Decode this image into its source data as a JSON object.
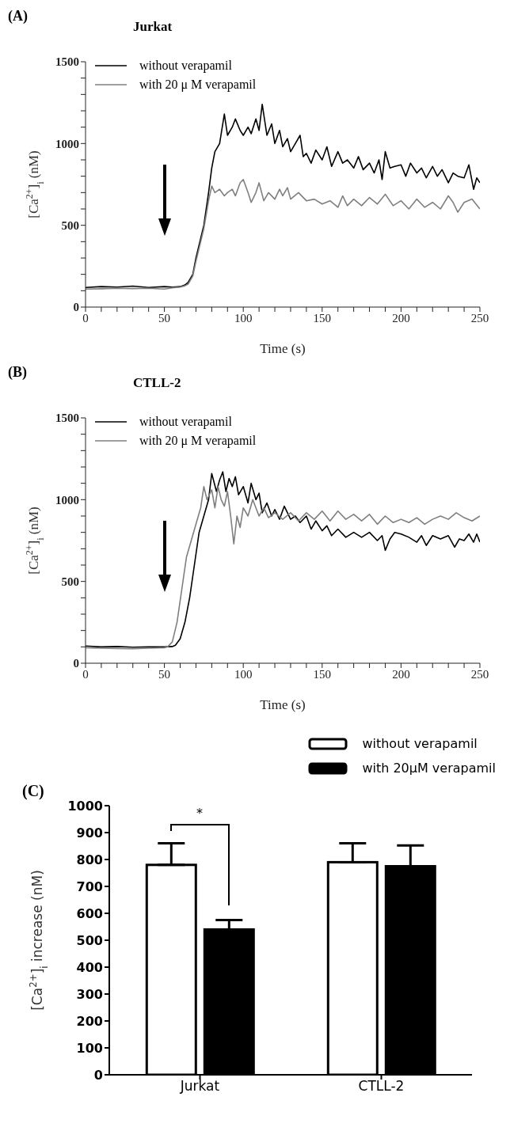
{
  "chart_data": [
    {
      "type": "line",
      "annotations": [
        "(A)"
      ],
      "title": "Jurkat",
      "xlabel": "Time (s)",
      "ylabel": "[Ca$^{2+}$]$_{i}$ (nM)",
      "legend": "top left",
      "grid": false,
      "marker": "none",
      "line_style": "solid",
      "xlim": [
        0,
        250
      ],
      "ylim": [
        0,
        1500
      ],
      "xticks": [
        0,
        {
          "value": 10,
          "label": null
        },
        {
          "value": 20,
          "label": null
        },
        {
          "value": 30,
          "label": null
        },
        {
          "value": 40,
          "label": null
        },
        50,
        {
          "value": 60,
          "label": null
        },
        {
          "value": 70,
          "label": null
        },
        {
          "value": 80,
          "label": null
        },
        {
          "value": 90,
          "label": null
        },
        100,
        {
          "value": 110,
          "label": null
        },
        {
          "value": 120,
          "label": null
        },
        {
          "value": 130,
          "label": null
        },
        {
          "value": 140,
          "label": null
        },
        150,
        {
          "value": 160,
          "label": null
        },
        {
          "value": 170,
          "label": null
        },
        {
          "value": 180,
          "label": null
        },
        {
          "value": 190,
          "label": null
        },
        200,
        {
          "value": 210,
          "label": null
        },
        {
          "value": 220,
          "label": null
        },
        {
          "value": 230,
          "label": null
        },
        {
          "value": 240,
          "label": null
        },
        250
      ],
      "yticks": [
        0,
        {
          "value": 100,
          "label": null
        },
        {
          "value": 200,
          "label": null
        },
        {
          "value": 300,
          "label": null
        },
        {
          "value": 400,
          "label": null
        },
        500,
        {
          "value": 600,
          "label": null
        },
        {
          "value": 700,
          "label": null
        },
        {
          "value": 800,
          "label": null
        },
        {
          "value": 900,
          "label": null
        },
        1000,
        {
          "value": 1100,
          "label": null
        },
        {
          "value": 1200,
          "label": null
        },
        {
          "value": 1300,
          "label": null
        },
        {
          "value": 1400,
          "label": null
        },
        1500
      ],
      "series": [
        {
          "name": "without verapamil",
          "color": "#000000",
          "x": [
            0,
            10,
            20,
            30,
            40,
            50,
            55,
            60,
            63,
            65,
            68,
            70,
            73,
            75,
            78,
            80,
            82,
            85,
            88,
            90,
            93,
            95,
            98,
            100,
            103,
            105,
            108,
            110,
            112,
            115,
            118,
            120,
            123,
            125,
            128,
            130,
            133,
            136,
            138,
            140,
            143,
            146,
            150,
            153,
            156,
            160,
            163,
            166,
            170,
            173,
            176,
            180,
            183,
            186,
            188,
            190,
            193,
            196,
            200,
            203,
            206,
            210,
            213,
            216,
            220,
            223,
            226,
            230,
            233,
            236,
            240,
            243,
            246,
            248,
            250
          ],
          "values": [
            120,
            125,
            122,
            128,
            120,
            125,
            122,
            125,
            135,
            150,
            200,
            300,
            420,
            500,
            700,
            850,
            950,
            1000,
            1180,
            1050,
            1100,
            1150,
            1080,
            1050,
            1100,
            1060,
            1150,
            1080,
            1240,
            1050,
            1120,
            1000,
            1080,
            980,
            1030,
            950,
            1000,
            1050,
            920,
            940,
            880,
            960,
            900,
            980,
            860,
            950,
            880,
            900,
            850,
            920,
            840,
            880,
            820,
            900,
            780,
            950,
            850,
            860,
            870,
            800,
            880,
            820,
            850,
            790,
            860,
            800,
            840,
            760,
            820,
            800,
            790,
            870,
            720,
            790,
            760
          ]
        },
        {
          "name": "with 20 μ M verapamil",
          "color": "#7f7f7f",
          "x": [
            0,
            10,
            20,
            30,
            40,
            50,
            55,
            60,
            63,
            65,
            68,
            70,
            73,
            75,
            78,
            80,
            82,
            85,
            88,
            90,
            93,
            95,
            98,
            100,
            103,
            105,
            108,
            110,
            113,
            116,
            120,
            123,
            125,
            128,
            130,
            135,
            140,
            145,
            150,
            155,
            160,
            163,
            166,
            170,
            175,
            180,
            185,
            190,
            195,
            200,
            205,
            210,
            215,
            220,
            225,
            230,
            233,
            236,
            240,
            245,
            250
          ],
          "values": [
            110,
            112,
            115,
            113,
            115,
            110,
            118,
            122,
            130,
            140,
            190,
            280,
            400,
            480,
            650,
            740,
            700,
            720,
            680,
            700,
            720,
            680,
            760,
            780,
            700,
            640,
            700,
            760,
            650,
            700,
            660,
            720,
            680,
            730,
            660,
            700,
            650,
            660,
            630,
            650,
            610,
            680,
            620,
            660,
            620,
            670,
            630,
            690,
            620,
            650,
            600,
            660,
            610,
            640,
            600,
            680,
            640,
            580,
            640,
            660,
            600
          ]
        }
      ]
    },
    {
      "type": "line",
      "annotations": [
        "(B)"
      ],
      "title": "CTLL-2",
      "xlabel": "Time (s)",
      "ylabel": "[Ca$^{2+}$]$_{i}$ (nM)",
      "legend": "top left",
      "grid": false,
      "marker": "none",
      "line_style": "solid",
      "xlim": [
        0,
        250
      ],
      "ylim": [
        0,
        1500
      ],
      "xticks": [
        0,
        {
          "value": 10,
          "label": null
        },
        {
          "value": 20,
          "label": null
        },
        {
          "value": 30,
          "label": null
        },
        {
          "value": 40,
          "label": null
        },
        50,
        {
          "value": 60,
          "label": null
        },
        {
          "value": 70,
          "label": null
        },
        {
          "value": 80,
          "label": null
        },
        {
          "value": 90,
          "label": null
        },
        100,
        {
          "value": 110,
          "label": null
        },
        {
          "value": 120,
          "label": null
        },
        {
          "value": 130,
          "label": null
        },
        {
          "value": 140,
          "label": null
        },
        150,
        {
          "value": 160,
          "label": null
        },
        {
          "value": 170,
          "label": null
        },
        {
          "value": 180,
          "label": null
        },
        {
          "value": 190,
          "label": null
        },
        200,
        {
          "value": 210,
          "label": null
        },
        {
          "value": 220,
          "label": null
        },
        {
          "value": 230,
          "label": null
        },
        {
          "value": 240,
          "label": null
        },
        250
      ],
      "yticks": [
        0,
        {
          "value": 100,
          "label": null
        },
        {
          "value": 200,
          "label": null
        },
        {
          "value": 300,
          "label": null
        },
        {
          "value": 400,
          "label": null
        },
        500,
        {
          "value": 600,
          "label": null
        },
        {
          "value": 700,
          "label": null
        },
        {
          "value": 800,
          "label": null
        },
        {
          "value": 900,
          "label": null
        },
        1000,
        {
          "value": 1100,
          "label": null
        },
        {
          "value": 1200,
          "label": null
        },
        {
          "value": 1300,
          "label": null
        },
        {
          "value": 1400,
          "label": null
        },
        1500
      ],
      "series": [
        {
          "name": "without verapamil",
          "color": "#000000",
          "x": [
            0,
            10,
            20,
            30,
            40,
            50,
            55,
            57,
            60,
            63,
            66,
            69,
            72,
            75,
            78,
            80,
            83,
            85,
            87,
            89,
            91,
            93,
            95,
            97,
            100,
            103,
            105,
            108,
            110,
            112,
            115,
            118,
            120,
            123,
            126,
            130,
            133,
            136,
            140,
            143,
            146,
            150,
            153,
            156,
            160,
            165,
            170,
            175,
            180,
            185,
            188,
            190,
            193,
            196,
            200,
            205,
            210,
            213,
            216,
            220,
            225,
            230,
            234,
            237,
            240,
            243,
            246,
            248,
            250
          ],
          "values": [
            105,
            100,
            102,
            98,
            100,
            100,
            102,
            110,
            150,
            250,
            400,
            600,
            800,
            900,
            1000,
            1160,
            1050,
            1120,
            1170,
            1050,
            1130,
            1080,
            1140,
            1030,
            1080,
            980,
            1100,
            1000,
            1040,
            920,
            980,
            900,
            940,
            880,
            960,
            880,
            900,
            860,
            900,
            820,
            870,
            810,
            840,
            780,
            820,
            770,
            800,
            770,
            800,
            750,
            780,
            690,
            760,
            800,
            790,
            770,
            740,
            780,
            720,
            780,
            760,
            780,
            710,
            760,
            750,
            790,
            740,
            790,
            740
          ]
        },
        {
          "name": "with 20 μ M verapamil",
          "color": "#7f7f7f",
          "x": [
            0,
            10,
            20,
            30,
            40,
            50,
            52,
            55,
            58,
            61,
            64,
            67,
            70,
            73,
            75,
            77,
            80,
            82,
            84,
            86,
            88,
            90,
            92,
            94,
            96,
            98,
            100,
            103,
            106,
            110,
            113,
            116,
            120,
            125,
            130,
            135,
            140,
            145,
            150,
            155,
            160,
            165,
            170,
            175,
            180,
            185,
            190,
            195,
            200,
            205,
            210,
            215,
            220,
            225,
            230,
            235,
            240,
            245,
            250
          ],
          "values": [
            95,
            92,
            90,
            88,
            92,
            95,
            100,
            130,
            250,
            450,
            650,
            750,
            850,
            950,
            1080,
            1000,
            1060,
            950,
            1080,
            1000,
            960,
            1050,
            900,
            730,
            900,
            830,
            950,
            900,
            1000,
            900,
            950,
            890,
            920,
            880,
            920,
            870,
            920,
            880,
            930,
            870,
            930,
            880,
            910,
            870,
            910,
            850,
            900,
            860,
            880,
            860,
            890,
            850,
            880,
            900,
            880,
            920,
            890,
            870,
            900
          ]
        }
      ]
    },
    {
      "type": "bar",
      "ylabel": "[Ca$^{2+}$]$_{i}$ increase (nM)",
      "legend": "top right",
      "grid": false,
      "categories": [
        "Jurkat",
        "CTLL-2"
      ],
      "ylim": [
        0,
        1000
      ],
      "yticks": [
        0,
        100,
        200,
        300,
        400,
        500,
        600,
        700,
        800,
        900,
        1000
      ],
      "annotations": [
        "(C)",
        "*"
      ],
      "series": [
        {
          "name": "without verapamil",
          "color": "#ffffff",
          "values": [
            780,
            790
          ],
          "errors": [
            [
              780,
              860
            ],
            [
              790,
              860
            ]
          ]
        },
        {
          "name": "with 20μM verapamil",
          "color": "#000000",
          "values": [
            540,
            775
          ],
          "errors": [
            [
              540,
              575
            ],
            [
              775,
              852
            ]
          ]
        }
      ]
    }
  ]
}
